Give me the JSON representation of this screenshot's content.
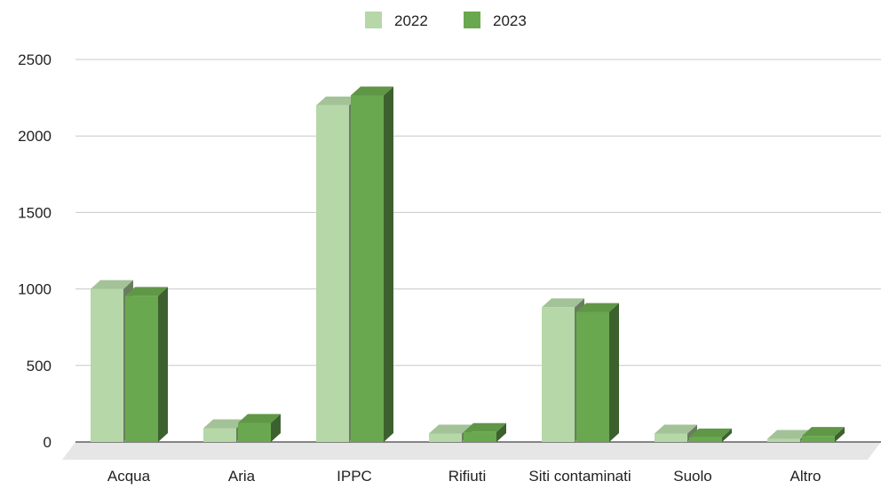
{
  "chart_data": {
    "type": "bar",
    "categories": [
      "Acqua",
      "Aria",
      "IPPC",
      "Rifiuti",
      "Siti contaminati",
      "Suolo",
      "Altro"
    ],
    "series": [
      {
        "name": "2022",
        "values": [
          1000,
          90,
          2200,
          55,
          880,
          55,
          20
        ]
      },
      {
        "name": "2023",
        "values": [
          955,
          125,
          2265,
          65,
          850,
          30,
          40
        ]
      }
    ],
    "ylim": [
      0,
      2500
    ],
    "yticks": [
      0,
      500,
      1000,
      1500,
      2000,
      2500
    ],
    "grid": true,
    "legend": "top-center",
    "colors": {
      "2022": "#b6d7a8",
      "2023": "#6aa84f"
    }
  }
}
